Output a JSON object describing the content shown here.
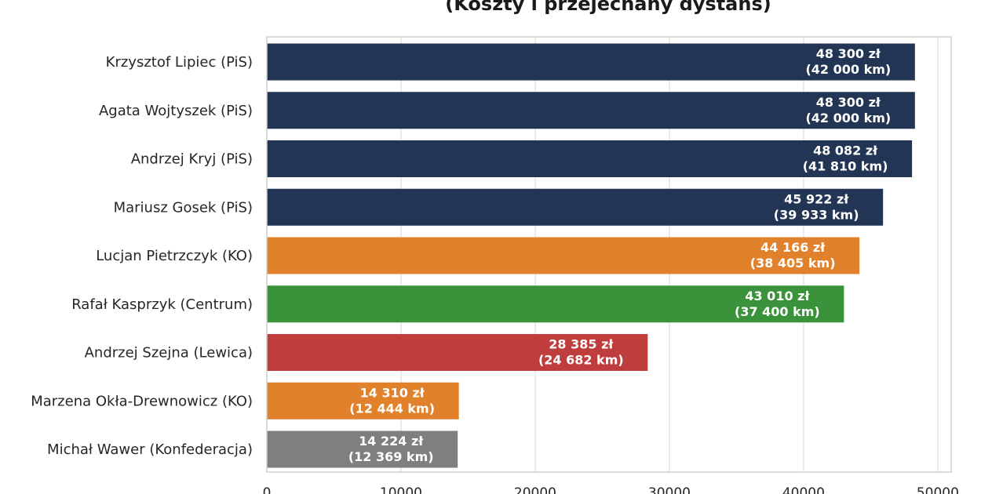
{
  "chart_data": {
    "type": "bar",
    "orientation": "horizontal",
    "title": "(Koszty i przejechany dystans)",
    "categories": [
      "Krzysztof Lipiec (PiS)",
      "Agata Wojtyszek (PiS)",
      "Andrzej Kryj (PiS)",
      "Mariusz Gosek (PiS)",
      "Lucjan Pietrzczyk (KO)",
      "Rafał Kasprzyk (Centrum)",
      "Andrzej Szejna (Lewica)",
      "Marzena Okła-Drewnowicz (KO)",
      "Michał Wawer (Konfederacja)"
    ],
    "values": [
      48300,
      48300,
      48082,
      45922,
      44166,
      43010,
      28385,
      14310,
      14224
    ],
    "label_cost": [
      "48 300 zł",
      "48 300 zł",
      "48 082 zł",
      "45 922 zł",
      "44 166 zł",
      "43 010 zł",
      "28 385 zł",
      "14 310 zł",
      "14 224 zł"
    ],
    "label_distance": [
      "(42 000 km)",
      "(42 000 km)",
      "(41 810 km)",
      "(39 933 km)",
      "(38 405 km)",
      "(37 400 km)",
      "(24 682 km)",
      "(12 444 km)",
      "(12 369 km)"
    ],
    "colors": [
      "#233554",
      "#233554",
      "#233554",
      "#233554",
      "#e1812c",
      "#3a923a",
      "#c03d3e",
      "#e1812c",
      "#7f7f7f"
    ],
    "xlim": [
      0,
      51000
    ],
    "xticks": [
      0,
      10000,
      20000,
      30000,
      40000,
      50000
    ],
    "xtick_labels": [
      "0",
      "10000",
      "20000",
      "30000",
      "40000",
      "50000"
    ],
    "grid": true,
    "xlabel": "",
    "ylabel": ""
  }
}
